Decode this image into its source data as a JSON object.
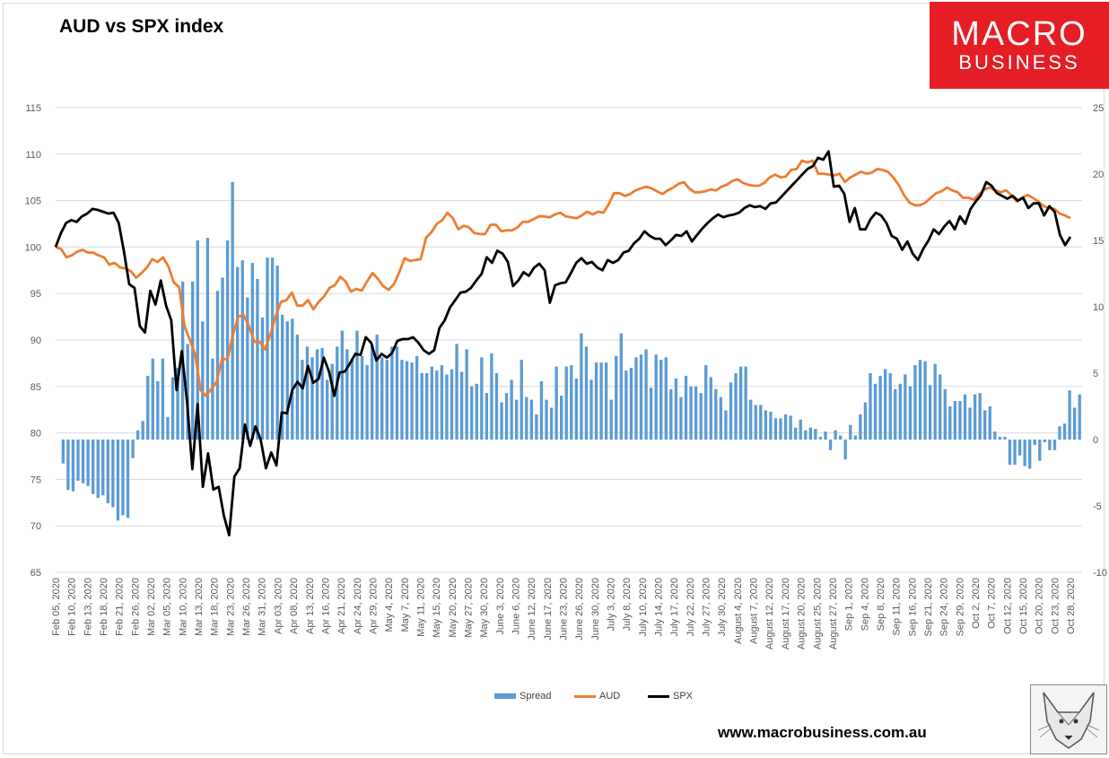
{
  "chart_data": {
    "type": "bar+line",
    "title": "AUD vs SPX index",
    "left_axis": {
      "min": 65,
      "max": 115,
      "step": 5,
      "ticks": [
        "65",
        "70",
        "75",
        "80",
        "85",
        "90",
        "95",
        "100",
        "105",
        "110",
        "115"
      ]
    },
    "right_axis": {
      "min": -10,
      "max": 25,
      "step": 5,
      "ticks": [
        "-10",
        "-5",
        "0",
        "5",
        "10",
        "15",
        "20",
        "25"
      ]
    },
    "date_labels": [
      "Feb 05, 2020",
      "Feb 10, 2020",
      "Feb 13, 2020",
      "Feb 18, 2020",
      "Feb 21, 2020",
      "Feb 26, 2020",
      "Mar 02, 2020",
      "Mar 05, 2020",
      "Mar 10, 2020",
      "Mar 13, 2020",
      "Mar 18, 2020",
      "Mar 23, 2020",
      "Mar 26, 2020",
      "Mar 31, 2020",
      "Apr 03, 2020",
      "Apr 08, 2020",
      "Apr 13, 2020",
      "Apr 16, 2020",
      "Apr 21, 2020",
      "Apr 24, 2020",
      "Apr 29, 2020",
      "May 4, 2020",
      "May 7, 2020",
      "May 11, 2020",
      "May 15, 2020",
      "May 20, 2020",
      "May 27, 2020",
      "May 30, 2020",
      "June 3, 2020",
      "June 6, 2020",
      "June 12, 2020",
      "June 17, 2020",
      "June 23, 2020",
      "June 26, 2020",
      "June 30, 2020",
      "July 3, 2020",
      "July 8, 2020",
      "July 10, 2020",
      "July 14, 2020",
      "July 17, 2020",
      "July 22, 2020",
      "July 27, 2020",
      "July 30, 2020",
      "August 4, 2020",
      "August 7, 2020",
      "August 12, 2020",
      "August 17, 2020",
      "August 20, 2020",
      "August 25, 2020",
      "August 27, 2020",
      "Sep 1, 2020",
      "Sep 4, 2020",
      "Sep 8, 2020",
      "Sep 11, 2020",
      "Sep 16, 2020",
      "Sep 21, 2020",
      "Sep 24, 2020",
      "Sep 29, 2020",
      "Oct 2, 2020",
      "Oct 7, 2020",
      "Oct 12, 2020",
      "Oct 15, 2020",
      "Oct 20, 2020",
      "Oct 23, 2020",
      "Oct 28, 2020"
    ],
    "series": [
      {
        "name": "Spread",
        "axis": "right",
        "kind": "bar",
        "color": "#5b9bd5",
        "values": [
          0,
          -1.8,
          -3.8,
          -3.9,
          -3.1,
          -3.3,
          -3.5,
          -4.1,
          -4.4,
          -4.2,
          -4.8,
          -5.1,
          -6.1,
          -5.7,
          -5.9,
          -1.4,
          0.7,
          1.4,
          4.8,
          6.1,
          4.4,
          6.1,
          1.7,
          4.7,
          5.4,
          11.9,
          7.2,
          11.9,
          15.0,
          8.9,
          15.2,
          6.1,
          11.2,
          12.2,
          15.0,
          19.4,
          13.0,
          13.5,
          10.7,
          13.3,
          12.1,
          9.2,
          13.7,
          13.7,
          13.1,
          9.4,
          8.9,
          9.1,
          7.9,
          6.0,
          7.0,
          6.2,
          6.8,
          6.9,
          4.5,
          5.7,
          7.0,
          8.2,
          6.8,
          6.1,
          8.2,
          6.3,
          5.6,
          7.2,
          7.9,
          6.2,
          6.0,
          7.0,
          7.0,
          6.0,
          5.9,
          5.8,
          6.3,
          5.0,
          5.0,
          5.5,
          5.2,
          5.6,
          4.9,
          5.3,
          7.2,
          5.1,
          6.8,
          4.0,
          4.2,
          6.2,
          3.5,
          6.5,
          5.0,
          2.8,
          3.5,
          4.5,
          3.0,
          6.0,
          3.2,
          3.0,
          1.9,
          4.4,
          3.0,
          2.4,
          5.5,
          3.3,
          5.5,
          5.6,
          4.6,
          8.0,
          7.0,
          4.5,
          5.8,
          5.8,
          5.8,
          3.0,
          6.3,
          8.0,
          5.2,
          5.4,
          6.2,
          6.4,
          6.8,
          3.9,
          6.4,
          6.0,
          6.2,
          3.8,
          4.6,
          3.2,
          4.8,
          4.0,
          4.0,
          3.5,
          5.6,
          4.7,
          3.8,
          3.2,
          2.2,
          4.3,
          5.0,
          5.5,
          5.5,
          3.0,
          2.6,
          2.6,
          2.2,
          2.1,
          1.6,
          1.6,
          1.9,
          1.8,
          0.9,
          1.5,
          0.7,
          0.9,
          0.8,
          0.2,
          0.6,
          -0.8,
          0.7,
          0.3,
          -1.5,
          1.1,
          0.3,
          1.9,
          2.8,
          5.0,
          4.2,
          4.8,
          5.3,
          5.0,
          3.8,
          4.2,
          4.9,
          4.0,
          5.6,
          6.0,
          5.9,
          4.1,
          5.7,
          4.9,
          3.8,
          2.5,
          2.9,
          2.9,
          3.4,
          2.4,
          3.4,
          3.5,
          2.2,
          2.5,
          0.6,
          0.2,
          0.2,
          -1.9,
          -1.9,
          -1.2,
          -2.0,
          -2.2,
          -0.4,
          -1.6,
          -0.2,
          -0.8,
          -0.8,
          1.0,
          1.2,
          3.7,
          2.4,
          3.4
        ]
      },
      {
        "name": "AUD",
        "axis": "left",
        "kind": "line",
        "color": "#ed7d31",
        "values": [
          100,
          99.8,
          98.9,
          99.1,
          99.5,
          99.7,
          99.4,
          99.4,
          99.1,
          98.9,
          98.1,
          98.3,
          97.8,
          97.7,
          97.4,
          96.7,
          97.2,
          97.8,
          98.7,
          98.4,
          98.9,
          97.9,
          96.2,
          95.7,
          91.5,
          90.0,
          88.4,
          84.6,
          84.0,
          84.7,
          85.5,
          88.0,
          87.9,
          90.5,
          92.5,
          92.7,
          91.5,
          89.8,
          89.8,
          89.0,
          90.6,
          92.6,
          94.1,
          94.3,
          95.1,
          93.7,
          93.7,
          94.3,
          93.3,
          94.1,
          94.7,
          95.6,
          95.9,
          96.8,
          96.3,
          95.2,
          95.5,
          95.3,
          96.3,
          97.2,
          96.6,
          95.8,
          95.4,
          96.0,
          97.3,
          98.8,
          98.5,
          98.6,
          98.7,
          101.0,
          101.6,
          102.5,
          102.9,
          103.7,
          103.1,
          101.9,
          102.3,
          102.1,
          101.5,
          101.4,
          101.4,
          102.4,
          102.4,
          101.7,
          101.8,
          101.8,
          102.1,
          102.7,
          102.7,
          103.0,
          103.3,
          103.3,
          103.2,
          103.5,
          103.7,
          103.3,
          103.2,
          103.1,
          103.4,
          103.8,
          103.5,
          103.8,
          103.7,
          104.6,
          105.8,
          105.8,
          105.5,
          105.7,
          106.1,
          106.3,
          106.5,
          106.3,
          106.0,
          105.7,
          106.1,
          106.4,
          106.8,
          107.0,
          106.3,
          105.9,
          105.9,
          106.0,
          106.2,
          106.1,
          106.5,
          106.7,
          107.1,
          107.3,
          106.9,
          106.7,
          106.6,
          106.6,
          106.9,
          107.5,
          107.8,
          107.5,
          107.6,
          108.3,
          108.4,
          109.3,
          109.1,
          109.3,
          107.9,
          107.9,
          107.8,
          107.7,
          107.9,
          107.0,
          107.5,
          107.8,
          108.1,
          107.9,
          108.0,
          108.4,
          108.3,
          108.1,
          107.5,
          106.7,
          105.6,
          104.8,
          104.5,
          104.5,
          104.8,
          105.3,
          105.8,
          106.0,
          106.4,
          106.1,
          105.9,
          105.3,
          105.3,
          105.1,
          105.7,
          106.2,
          106.4,
          106.1,
          105.9,
          106.1,
          105.6,
          104.9,
          105.3,
          105.6,
          105.3,
          104.9,
          104.4,
          104.2,
          104.1,
          103.6,
          103.4,
          103.1
        ],
        "resample_to_bars": true
      },
      {
        "name": "SPX",
        "axis": "left",
        "kind": "line",
        "color": "#000000",
        "values": [
          100,
          101.5,
          102.6,
          102.9,
          102.7,
          103.3,
          103.6,
          104.1,
          104.0,
          103.8,
          103.6,
          103.7,
          102.6,
          99.5,
          96.0,
          95.6,
          91.5,
          90.8,
          95.3,
          93.8,
          96.4,
          93.7,
          92.1,
          84.6,
          88.8,
          83.3,
          76.1,
          83.1,
          74.2,
          77.8,
          73.9,
          74.2,
          71.1,
          69.0,
          75.3,
          76.2,
          80.9,
          78.6,
          80.7,
          79.3,
          76.2,
          77.9,
          76.5,
          82.2,
          82.1,
          84.6,
          85.5,
          84.8,
          87.2,
          85.4,
          85.8,
          88.1,
          86.6,
          84.0,
          86.5,
          86.6,
          87.5,
          88.5,
          88.4,
          90.3,
          89.7,
          87.8,
          88.5,
          88.1,
          88.6,
          89.9,
          90.1,
          90.1,
          90.3,
          89.7,
          88.9,
          88.5,
          88.9,
          91.3,
          92.1,
          93.5,
          94.3,
          95.1,
          95.2,
          95.6,
          96.4,
          97.1,
          98.9,
          98.3,
          99.6,
          99.3,
          98.4,
          95.8,
          96.4,
          97.3,
          96.9,
          97.8,
          98.2,
          97.5,
          94.0,
          95.9,
          96.1,
          96.2,
          97.2,
          98.3,
          98.8,
          98.2,
          98.4,
          97.8,
          97.5,
          98.6,
          98.3,
          98.6,
          99.4,
          99.6,
          100.4,
          100.9,
          101.7,
          101.2,
          100.9,
          100.9,
          100.2,
          100.7,
          101.3,
          101.2,
          101.7,
          100.6,
          101.3,
          102.0,
          102.6,
          103.1,
          103.5,
          103.2,
          103.4,
          103.5,
          103.7,
          104.2,
          104.5,
          104.3,
          104.4,
          104.1,
          104.7,
          104.8,
          105.4,
          106.0,
          106.6,
          107.2,
          107.8,
          108.4,
          108.7,
          109.6,
          109.4,
          110.3,
          106.5,
          106.6,
          105.7,
          102.7,
          104.2,
          101.9,
          101.9,
          103.0,
          103.7,
          103.4,
          102.6,
          101.2,
          100.9,
          99.7,
          100.6,
          99.3,
          98.6,
          99.8,
          100.7,
          101.9,
          101.4,
          102.2,
          102.8,
          101.9,
          103.3,
          102.5,
          104.1,
          104.9,
          105.6,
          107.0,
          106.6,
          105.8,
          105.5,
          105.2,
          105.5,
          105.0,
          105.3,
          104.2,
          104.7,
          104.7,
          103.4,
          104.4,
          103.8,
          101.3,
          100.2,
          101.1
        ]
      }
    ],
    "legend": {
      "position": "bottom",
      "entries": [
        "Spread",
        "AUD",
        "SPX"
      ]
    },
    "grid": true
  },
  "page": {
    "title": "AUD vs SPX index",
    "brand_line1": "MACRO",
    "brand_line2": "BUSINESS",
    "website": "www.macrobusiness.com.au"
  },
  "legend": {
    "spread": "Spread",
    "aud": "AUD",
    "spx": "SPX"
  },
  "colors": {
    "spread": "#5b9bd5",
    "aud": "#ed7d31",
    "spx": "#000000",
    "grid": "#d9d9d9",
    "brand": "#e51d25"
  }
}
